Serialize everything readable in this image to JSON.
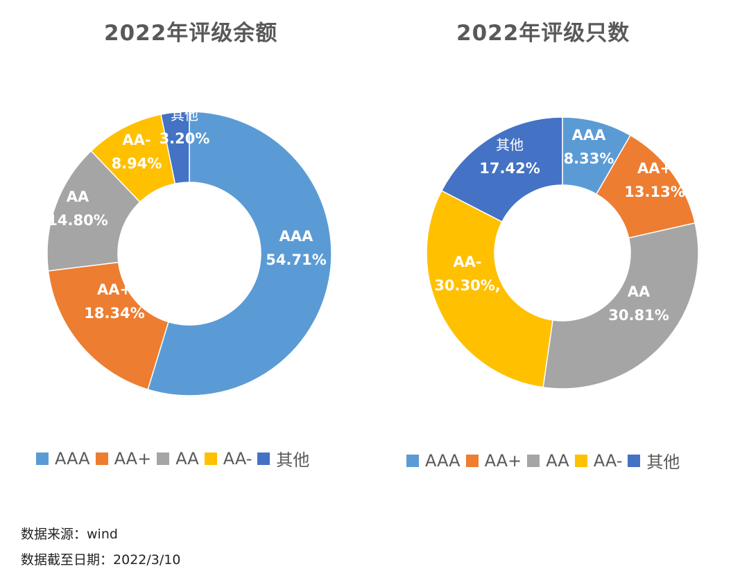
{
  "footer": {
    "source_label": "数据来源：",
    "source_value": "wind",
    "date_label": "数据截至日期：",
    "date_value": "2022/3/10"
  },
  "colors": {
    "AAA": "#5B9BD5",
    "AA+": "#ED7D31",
    "AA": "#A5A5A5",
    "AA-": "#FFC000",
    "其他": "#4472C4"
  },
  "chart_data": [
    {
      "type": "pie",
      "variant": "donut",
      "title": "2022年评级余额",
      "categories": [
        "AAA",
        "AA+",
        "AA",
        "AA-",
        "其他"
      ],
      "values": [
        54.71,
        18.34,
        14.8,
        8.94,
        3.2
      ],
      "data_labels": [
        "54.71%",
        "18.34%",
        "14.80%",
        "8.94%",
        "3.20%"
      ],
      "legend": [
        "AAA",
        "AA+",
        "AA",
        "AA-",
        "其他"
      ],
      "legend_position": "bottom"
    },
    {
      "type": "pie",
      "variant": "donut",
      "title": "2022年评级只数",
      "categories": [
        "AAA",
        "AA+",
        "AA",
        "AA-",
        "其他"
      ],
      "values": [
        8.33,
        13.13,
        30.81,
        30.3,
        17.42
      ],
      "data_labels": [
        "8.33%",
        "13.13%",
        "30.81%",
        "30.30%,",
        "17.42%"
      ],
      "legend": [
        "AAA",
        "AA+",
        "AA",
        "AA-",
        "其他"
      ],
      "legend_position": "bottom"
    }
  ]
}
